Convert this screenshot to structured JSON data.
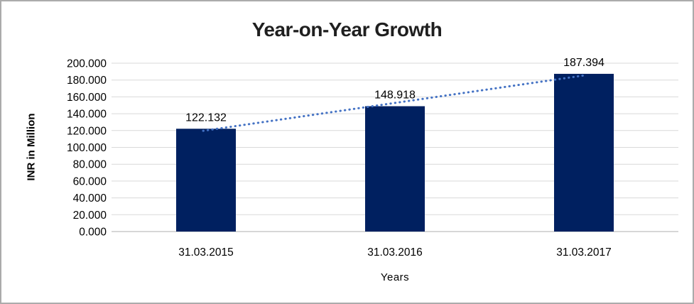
{
  "chart_data": {
    "type": "bar",
    "title": "Year-on-Year Growth",
    "xlabel": "Years",
    "ylabel": "INR in Million",
    "categories": [
      "31.03.2015",
      "31.03.2016",
      "31.03.2017"
    ],
    "values": [
      122.132,
      148.918,
      187.394
    ],
    "data_labels": [
      "122.132",
      "148.918",
      "187.394"
    ],
    "ylim": [
      0,
      200
    ],
    "y_tick_step": 20,
    "y_tick_labels": [
      "0.000",
      "20.000",
      "40.000",
      "60.000",
      "80.000",
      "100.000",
      "120.000",
      "140.000",
      "160.000",
      "180.000",
      "200.000"
    ],
    "grid": true,
    "legend": false,
    "trendline": {
      "type": "linear",
      "style": "dotted"
    },
    "colors": {
      "bar": "#002060",
      "trendline": "#4472C4",
      "gridline": "#D9D9D9",
      "axis_line": "#BFBFBF",
      "title_text": "#1F1F1F",
      "tick_text": "#000000",
      "frame_border": "#ABABAB",
      "background": "#FFFFFF"
    }
  }
}
